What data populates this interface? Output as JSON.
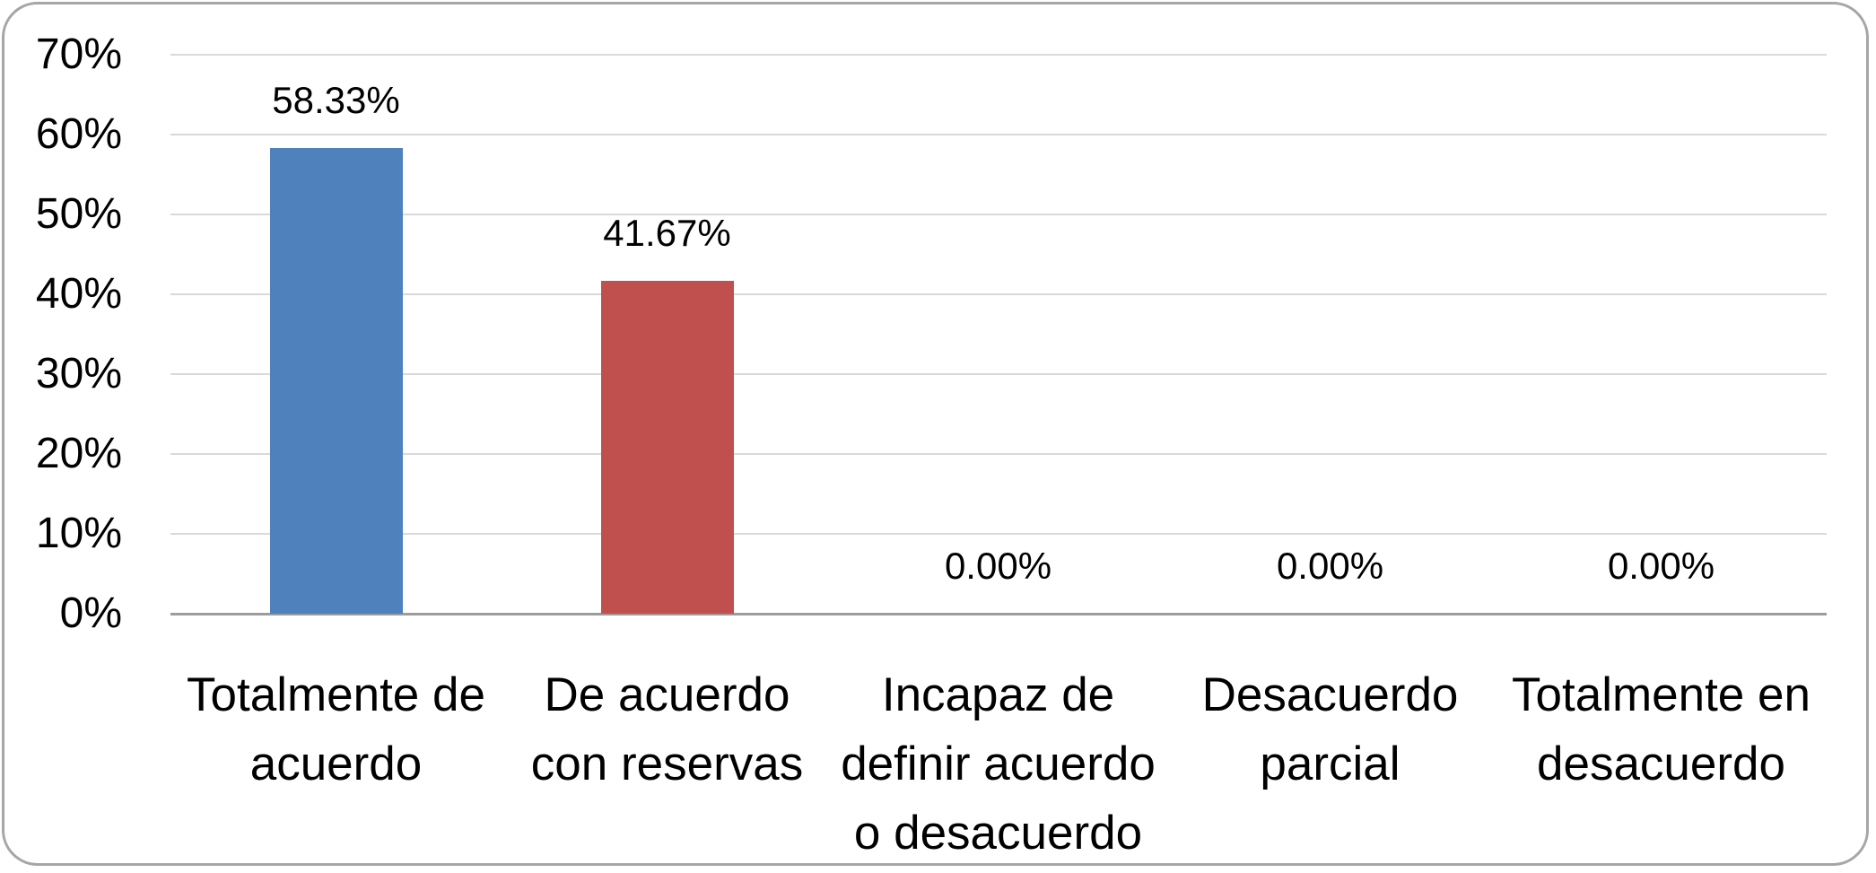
{
  "chart_data": {
    "type": "bar",
    "title": "",
    "xlabel": "",
    "ylabel": "",
    "categories": [
      "Totalmente de acuerdo",
      "De acuerdo con reservas",
      "Incapaz de definir acuerdo o desacuerdo",
      "Desacuerdo parcial",
      "Totalmente en desacuerdo"
    ],
    "category_lines": [
      [
        "Totalmente de",
        "acuerdo"
      ],
      [
        "De acuerdo",
        "con reservas"
      ],
      [
        "Incapaz de",
        "definir acuerdo",
        "o desacuerdo"
      ],
      [
        "Desacuerdo",
        "parcial"
      ],
      [
        "Totalmente en",
        "desacuerdo"
      ]
    ],
    "values": [
      58.33,
      41.67,
      0,
      0,
      0
    ],
    "value_labels": [
      "58.33%",
      "41.67%",
      "0.00%",
      "0.00%",
      "0.00%"
    ],
    "bar_colors": [
      "#4f81bd",
      "#c0504d",
      null,
      null,
      null
    ],
    "ylim": [
      0,
      70
    ],
    "y_tick_step": 10,
    "y_ticks": [
      "0%",
      "10%",
      "20%",
      "30%",
      "40%",
      "50%",
      "60%",
      "70%"
    ],
    "grid": true,
    "legend": "none",
    "colors": {
      "gridline": "#d9d9d9",
      "axis_line": "#9c9c9c",
      "frame_border": "#a6a6a6",
      "text": "#000000",
      "background": "#ffffff"
    }
  }
}
